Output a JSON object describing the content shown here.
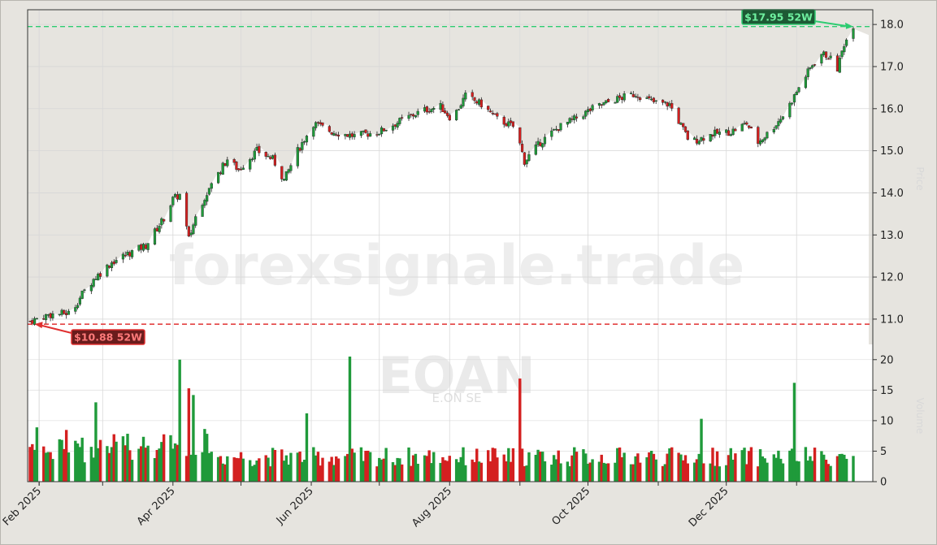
{
  "chart_data": {
    "type": "candlestick",
    "symbol": "EOAN",
    "company_name": "E.ON SE",
    "watermark": "forexsignale.trade",
    "price_axis_title": "Price",
    "volume_axis_title": "Volume",
    "price_ylim": [
      10.4,
      18.35
    ],
    "price_ticks": [
      "11.0",
      "12.0",
      "13.0",
      "14.0",
      "15.0",
      "16.0",
      "17.0",
      "18.0"
    ],
    "volume_ylim": [
      0,
      22.5
    ],
    "volume_ticks": [
      "0",
      "5",
      "10",
      "15",
      "20"
    ],
    "x_labels": [
      "Feb 2025",
      "Apr 2025",
      "Jun 2025",
      "Aug 2025",
      "Oct 2025",
      "Dec 2025"
    ],
    "x_label_dates": [
      "2025-02-01",
      "2025-04-01",
      "2025-06-01",
      "2025-08-01",
      "2025-10-01",
      "2025-12-01"
    ],
    "date_range": [
      "2025-01-28",
      "2026-01-26"
    ],
    "high_52w": {
      "label": "$17.95 52W",
      "value": 17.95,
      "color": "#2ecc71"
    },
    "low_52w": {
      "label": "$10.88 52W",
      "value": 10.88,
      "color": "#e03030"
    },
    "up_color": "#1f9a3a",
    "down_color": "#d42020",
    "keypoints": [
      [
        "2025-01-28",
        10.95
      ],
      [
        "2025-02-05",
        11.1
      ],
      [
        "2025-02-15",
        11.15
      ],
      [
        "2025-02-20",
        11.6
      ],
      [
        "2025-02-25",
        11.95
      ],
      [
        "2025-03-05",
        12.35
      ],
      [
        "2025-03-12",
        12.55
      ],
      [
        "2025-03-20",
        12.75
      ],
      [
        "2025-03-28",
        13.4
      ],
      [
        "2025-04-01",
        13.85
      ],
      [
        "2025-04-04",
        13.95
      ],
      [
        "2025-04-08",
        12.9
      ],
      [
        "2025-04-12",
        13.6
      ],
      [
        "2025-04-18",
        14.2
      ],
      [
        "2025-04-25",
        14.8
      ],
      [
        "2025-04-30",
        14.55
      ],
      [
        "2025-05-08",
        15.0
      ],
      [
        "2025-05-15",
        14.8
      ],
      [
        "2025-05-20",
        14.3
      ],
      [
        "2025-05-26",
        15.0
      ],
      [
        "2025-06-02",
        15.65
      ],
      [
        "2025-06-10",
        15.45
      ],
      [
        "2025-06-20",
        15.35
      ],
      [
        "2025-07-01",
        15.45
      ],
      [
        "2025-07-10",
        15.7
      ],
      [
        "2025-07-20",
        15.95
      ],
      [
        "2025-07-28",
        16.05
      ],
      [
        "2025-08-02",
        15.75
      ],
      [
        "2025-08-08",
        16.3
      ],
      [
        "2025-08-15",
        16.1
      ],
      [
        "2025-08-22",
        15.75
      ],
      [
        "2025-08-30",
        15.55
      ],
      [
        "2025-09-03",
        14.75
      ],
      [
        "2025-09-10",
        15.2
      ],
      [
        "2025-09-18",
        15.55
      ],
      [
        "2025-09-25",
        15.75
      ],
      [
        "2025-10-03",
        16.0
      ],
      [
        "2025-10-12",
        16.2
      ],
      [
        "2025-10-22",
        16.35
      ],
      [
        "2025-10-30",
        16.15
      ],
      [
        "2025-11-06",
        16.1
      ],
      [
        "2025-11-12",
        15.5
      ],
      [
        "2025-11-15",
        15.2
      ],
      [
        "2025-11-25",
        15.4
      ],
      [
        "2025-12-03",
        15.45
      ],
      [
        "2025-12-10",
        15.65
      ],
      [
        "2025-12-15",
        15.2
      ],
      [
        "2025-12-20",
        15.45
      ],
      [
        "2025-12-27",
        15.9
      ],
      [
        "2026-01-03",
        16.6
      ],
      [
        "2026-01-08",
        17.05
      ],
      [
        "2026-01-12",
        17.3
      ],
      [
        "2026-01-15",
        17.25
      ],
      [
        "2026-01-19",
        16.95
      ],
      [
        "2026-01-22",
        17.55
      ],
      [
        "2026-01-26",
        17.9
      ]
    ],
    "volume_spikes": [
      [
        "2025-02-26",
        13.0
      ],
      [
        "2025-04-04",
        20.0
      ],
      [
        "2025-04-08",
        15.3
      ],
      [
        "2025-04-10",
        14.2
      ],
      [
        "2025-05-30",
        11.2
      ],
      [
        "2025-06-18",
        20.5
      ],
      [
        "2025-09-01",
        16.9
      ],
      [
        "2025-11-20",
        10.3
      ],
      [
        "2025-12-31",
        16.2
      ]
    ]
  }
}
